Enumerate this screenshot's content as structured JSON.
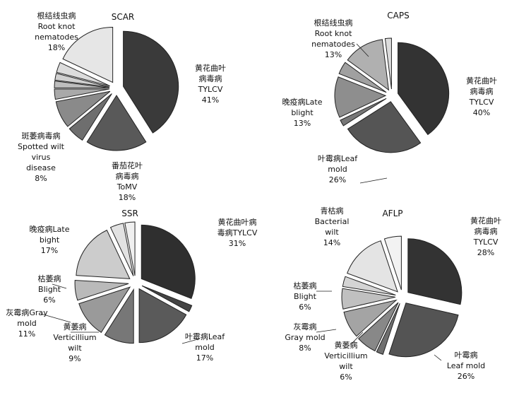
{
  "chart_data": [
    {
      "type": "pie",
      "title": "SCAR",
      "series": [
        {
          "name": "黄花曲叶病毒病 TYLCV",
          "value": 41,
          "label": "黄花曲叶|病毒病|TYLCV|41%",
          "color": "#3a3a3a"
        },
        {
          "name": "番茄花叶病毒病 ToMV",
          "value": 18,
          "label": "番茄花叶|病毒病|ToMV|18%",
          "color": "#595959"
        },
        {
          "name": "other-1",
          "value": 5,
          "label": "",
          "color": "#6e6e6e"
        },
        {
          "name": "斑萎病毒病 Spotted wilt virus disease",
          "value": 8,
          "label": "斑萎病毒病|Spotted wilt|virus|disease|8%",
          "color": "#8a8a8a"
        },
        {
          "name": "other-2",
          "value": 3,
          "label": "",
          "color": "#a9a9a9"
        },
        {
          "name": "other-3",
          "value": 2,
          "label": "",
          "color": "#bdbdbd"
        },
        {
          "name": "other-4",
          "value": 2,
          "label": "",
          "color": "#d0d0d0"
        },
        {
          "name": "other-5",
          "value": 3,
          "label": "",
          "color": "#dcdcdc"
        },
        {
          "name": "根结线虫病 Root knot nematodes",
          "value": 18,
          "label": "根结线虫病|Root knot|nematodes|18%",
          "color": "#e6e6e6"
        }
      ]
    },
    {
      "type": "pie",
      "title": "CAPS",
      "series": [
        {
          "name": "黄花曲叶病毒病 TYLCV",
          "value": 40,
          "label": "黄花曲叶|病毒病|TYLCV|40%",
          "color": "#333333"
        },
        {
          "name": "叶霉病 Leaf mold",
          "value": 26,
          "label": "叶霉病Leaf|mold|26%",
          "color": "#555555"
        },
        {
          "name": "other-1",
          "value": 2,
          "label": "",
          "color": "#777777"
        },
        {
          "name": "晚疫病 Late blight",
          "value": 13,
          "label": "晚疫病Late|blight|13%",
          "color": "#8e8e8e"
        },
        {
          "name": "other-2",
          "value": 4,
          "label": "",
          "color": "#a0a0a0"
        },
        {
          "name": "根结线虫病 Root knot nematodes",
          "value": 13,
          "label": "根结线虫病|Root knot|nematodes|13%",
          "color": "#b0b0b0"
        },
        {
          "name": "other-3",
          "value": 2,
          "label": "",
          "color": "#dcdcdc"
        }
      ]
    },
    {
      "type": "pie",
      "title": "SSR",
      "series": [
        {
          "name": "黄花曲叶病毒病 TYLCV",
          "value": 31,
          "label": "黄花曲叶病|毒病TYLCV|31%",
          "color": "#2f2f2f"
        },
        {
          "name": "other-1",
          "value": 2,
          "label": "",
          "color": "#444444"
        },
        {
          "name": "叶霉病 Leaf mold",
          "value": 17,
          "label": "叶霉病Leaf|mold|17%",
          "color": "#5a5a5a"
        },
        {
          "name": "黄萎病 Verticillium wilt",
          "value": 9,
          "label": "黄萎病|Verticillium|wilt|9%",
          "color": "#777777"
        },
        {
          "name": "灰霉病 Gray mold",
          "value": 11,
          "label": "灰霉病Gray|mold|11%",
          "color": "#9a9a9a"
        },
        {
          "name": "枯萎病 Blight",
          "value": 6,
          "label": "枯萎病|Blight|6%",
          "color": "#bababa"
        },
        {
          "name": "晚疫病 Late bight",
          "value": 17,
          "label": "晚疫病Late|bight|17%",
          "color": "#cccccc"
        },
        {
          "name": "other-2",
          "value": 4,
          "label": "",
          "color": "#e2e2e2"
        },
        {
          "name": "other-3",
          "value": 3,
          "label": "",
          "color": "#f0f0f0"
        }
      ]
    },
    {
      "type": "pie",
      "title": "AFLP",
      "series": [
        {
          "name": "黄花曲叶病毒病 TYLCV",
          "value": 28,
          "label": "黄花曲叶|病毒病|TYLCV|28%",
          "color": "#333333"
        },
        {
          "name": "叶霉病 Leaf mold",
          "value": 26,
          "label": "叶霉病|Leaf mold|26%",
          "color": "#545454"
        },
        {
          "name": "other-1",
          "value": 2,
          "label": "",
          "color": "#6f6f6f"
        },
        {
          "name": "黄萎病 Verticillium wilt",
          "value": 6,
          "label": "黄萎病|Verticillium|wilt|6%",
          "color": "#888888"
        },
        {
          "name": "灰霉病 Gray mold",
          "value": 8,
          "label": "灰霉病|Gray mold|8%",
          "color": "#a4a4a4"
        },
        {
          "name": "枯萎病 Blight",
          "value": 6,
          "label": "枯萎病|Blight|6%",
          "color": "#c0c0c0"
        },
        {
          "name": "other-2",
          "value": 3,
          "label": "",
          "color": "#d4d4d4"
        },
        {
          "name": "青枯病 Bacterial wilt",
          "value": 14,
          "label": "青枯病|Bacterial|wilt|14%",
          "color": "#e4e4e4"
        },
        {
          "name": "other-3",
          "value": 5,
          "label": "",
          "color": "#f2f2f2"
        }
      ]
    }
  ]
}
